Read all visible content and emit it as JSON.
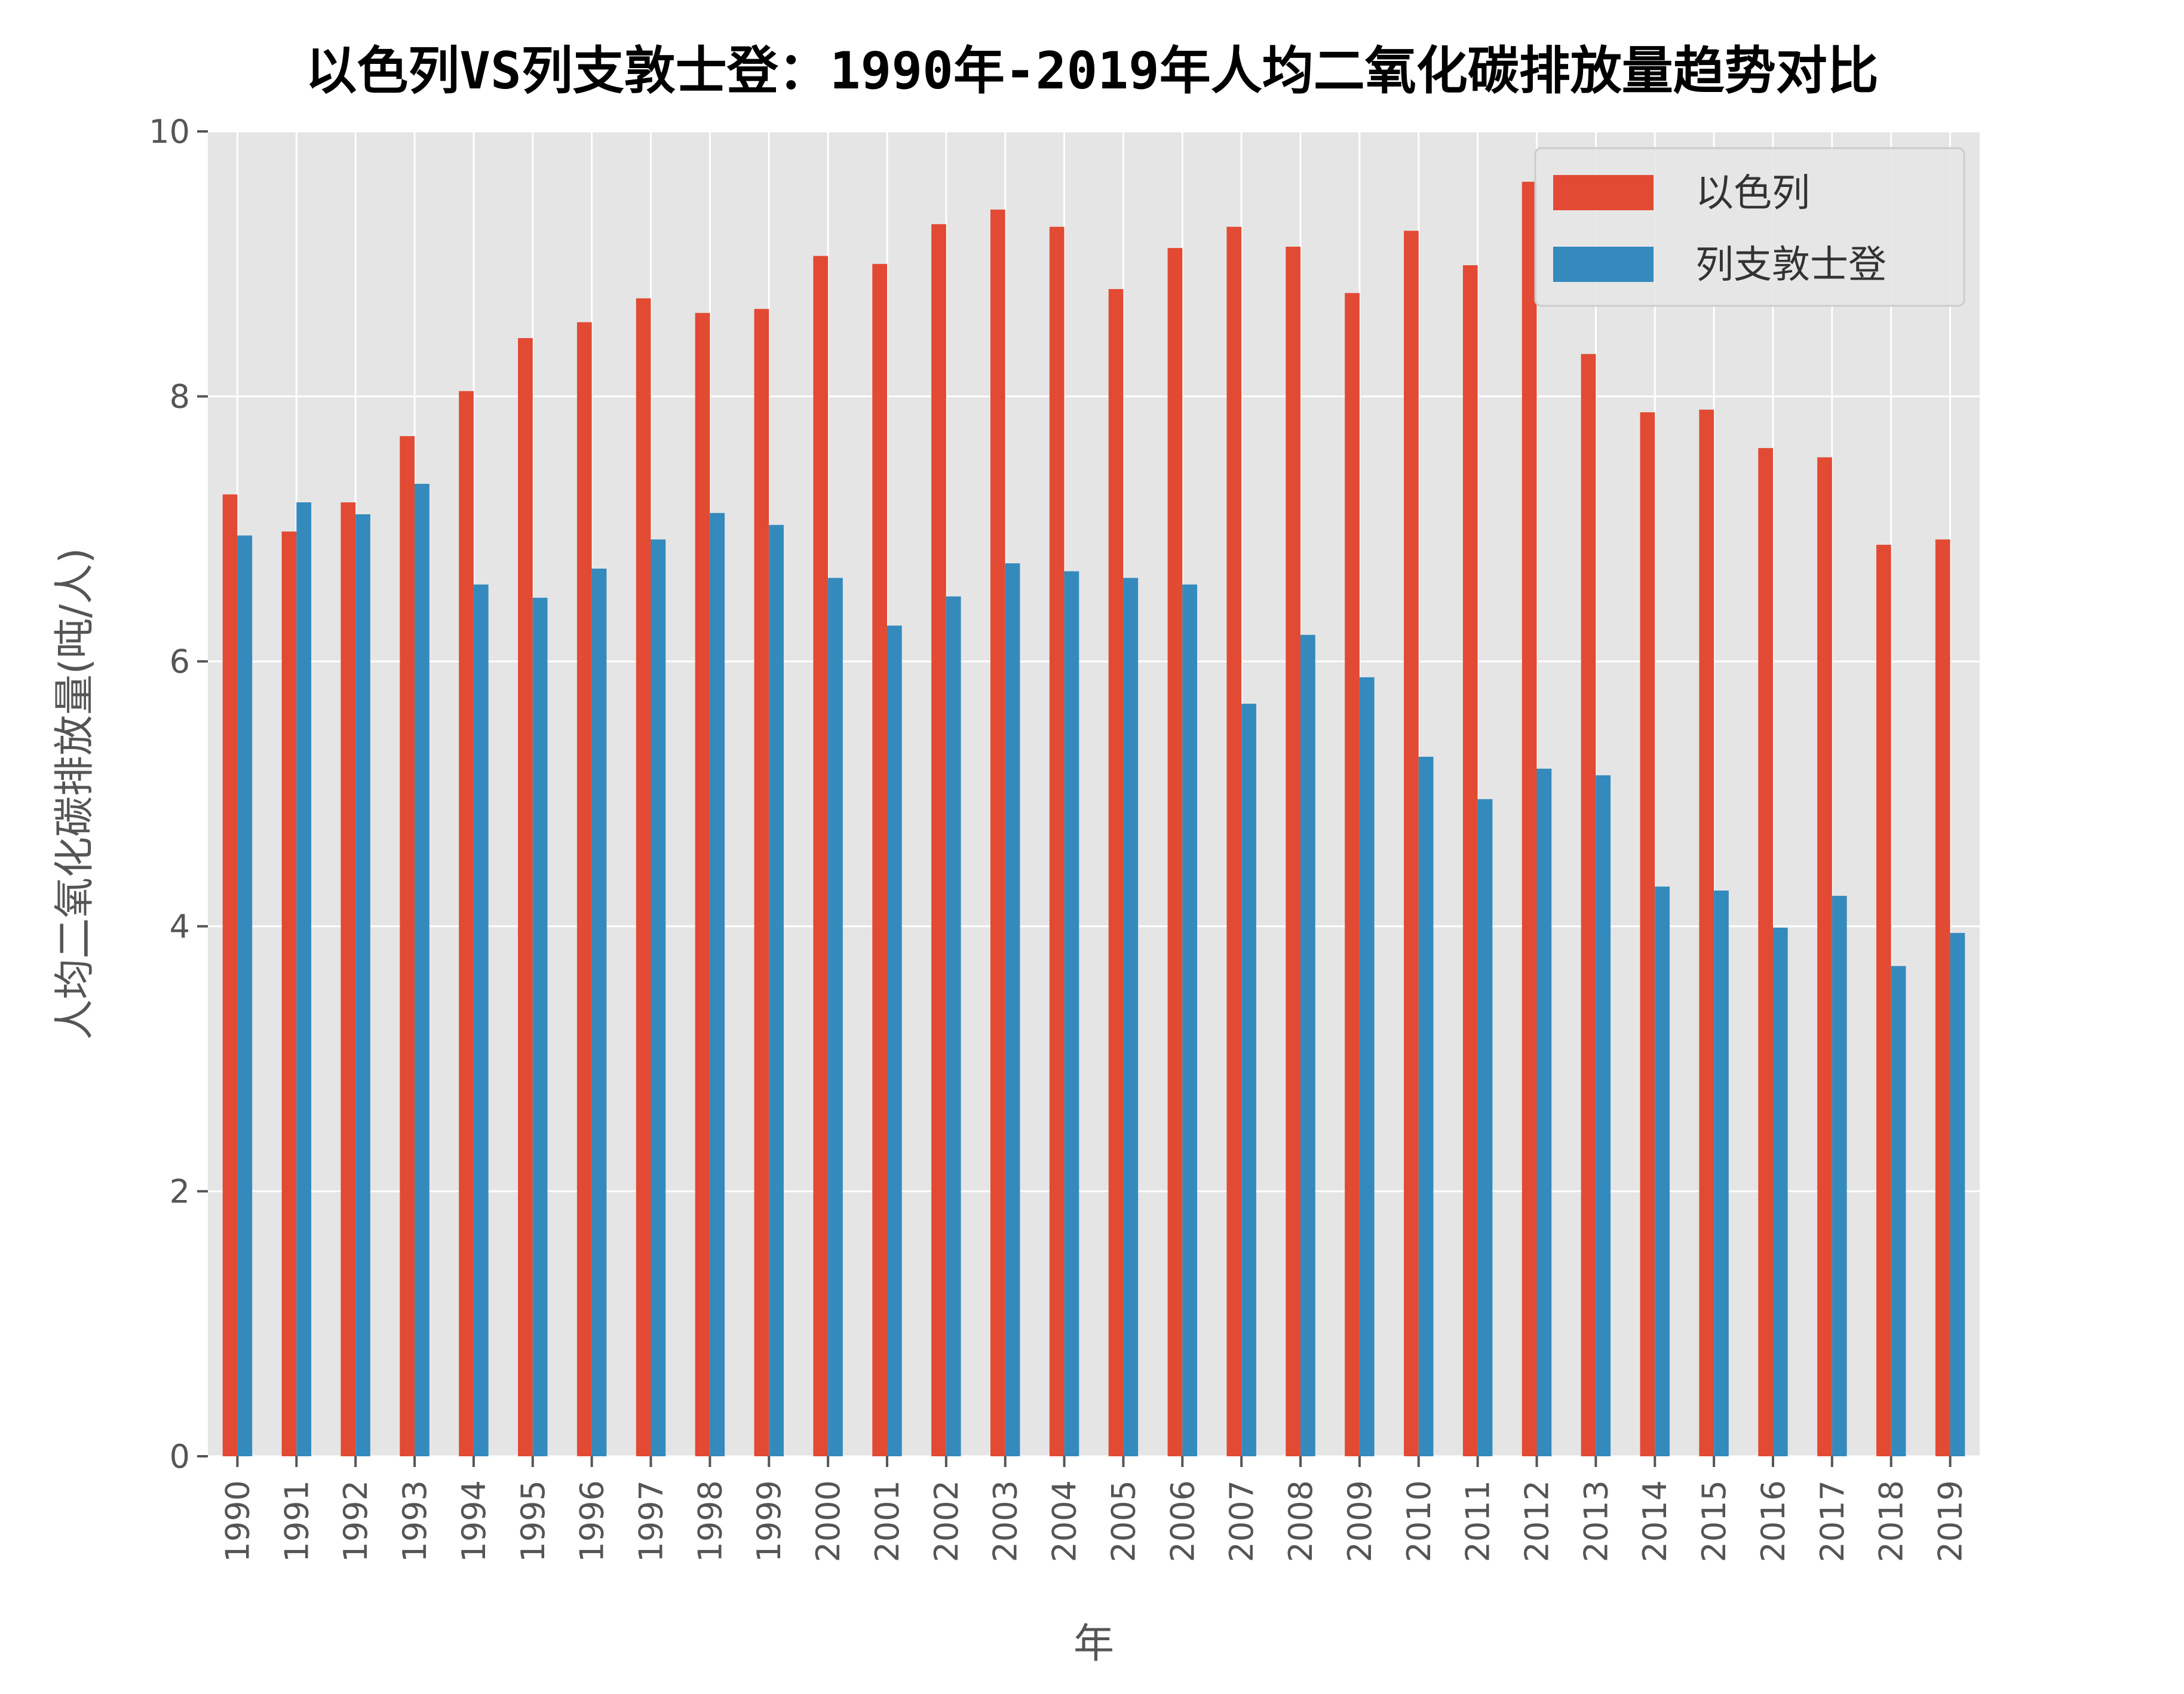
{
  "chart_data": {
    "type": "bar",
    "title": "以色列VS列支敦士登：1990年-2019年人均二氧化碳排放量趋势对比",
    "xlabel": "年",
    "ylabel": "人均二氧化碳排放量(吨/人)",
    "ylim": [
      0,
      10
    ],
    "yticks": [
      0,
      2,
      4,
      6,
      8,
      10
    ],
    "grid": true,
    "legend_position": "top-right",
    "categories": [
      "1990",
      "1991",
      "1992",
      "1993",
      "1994",
      "1995",
      "1996",
      "1997",
      "1998",
      "1999",
      "2000",
      "2001",
      "2002",
      "2003",
      "2004",
      "2005",
      "2006",
      "2007",
      "2008",
      "2009",
      "2010",
      "2011",
      "2012",
      "2013",
      "2014",
      "2015",
      "2016",
      "2017",
      "2018",
      "2019"
    ],
    "series": [
      {
        "name": "以色列",
        "color": "#E24A33",
        "values": [
          7.26,
          6.98,
          7.2,
          7.7,
          8.04,
          8.44,
          8.56,
          8.74,
          8.63,
          8.66,
          9.06,
          9.0,
          9.3,
          9.41,
          9.28,
          8.81,
          9.12,
          9.28,
          9.13,
          8.78,
          9.25,
          8.99,
          9.62,
          8.32,
          7.88,
          7.9,
          7.61,
          7.54,
          6.88,
          6.92
        ]
      },
      {
        "name": "列支敦士登",
        "color": "#348ABD",
        "values": [
          6.95,
          7.2,
          7.11,
          7.34,
          6.58,
          6.48,
          6.7,
          6.92,
          7.12,
          7.03,
          6.63,
          6.27,
          6.49,
          6.74,
          6.68,
          6.63,
          6.58,
          5.68,
          6.2,
          5.88,
          5.28,
          4.96,
          5.19,
          5.14,
          4.3,
          4.27,
          3.99,
          4.23,
          3.7,
          3.95
        ]
      }
    ],
    "style": {
      "plot_background": "#E5E5E5",
      "grid_color": "#FFFFFF"
    }
  }
}
